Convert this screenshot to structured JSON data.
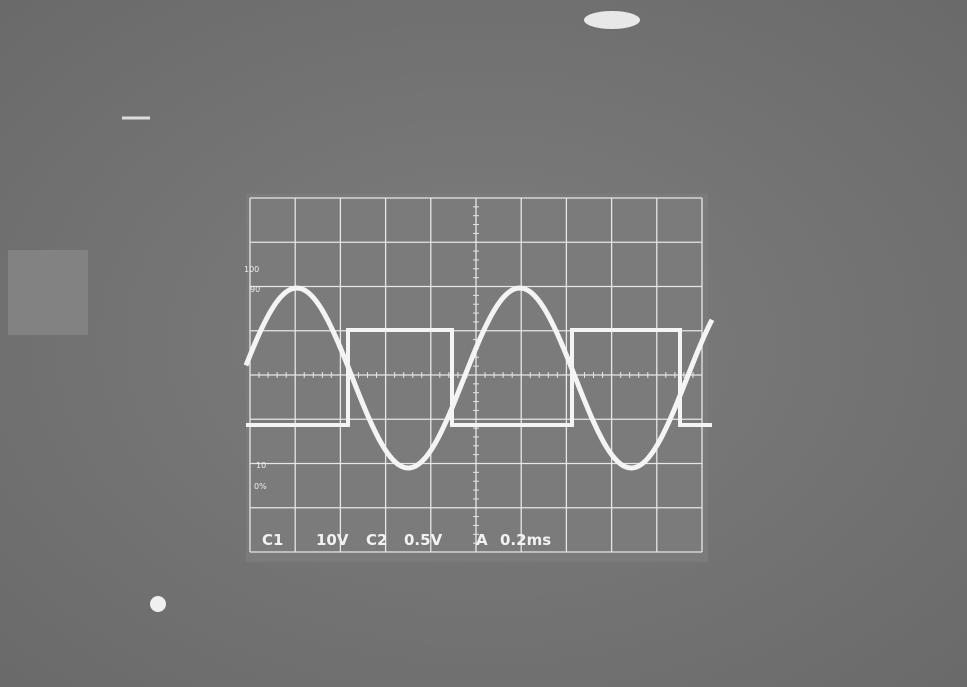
{
  "graticule_labels": {
    "top": "100",
    "upper": "90",
    "lower": "10",
    "bottom": "0%"
  },
  "readout": [
    "C1",
    "10V",
    "C2",
    "0.5V",
    "A",
    "0.2ms"
  ]
}
